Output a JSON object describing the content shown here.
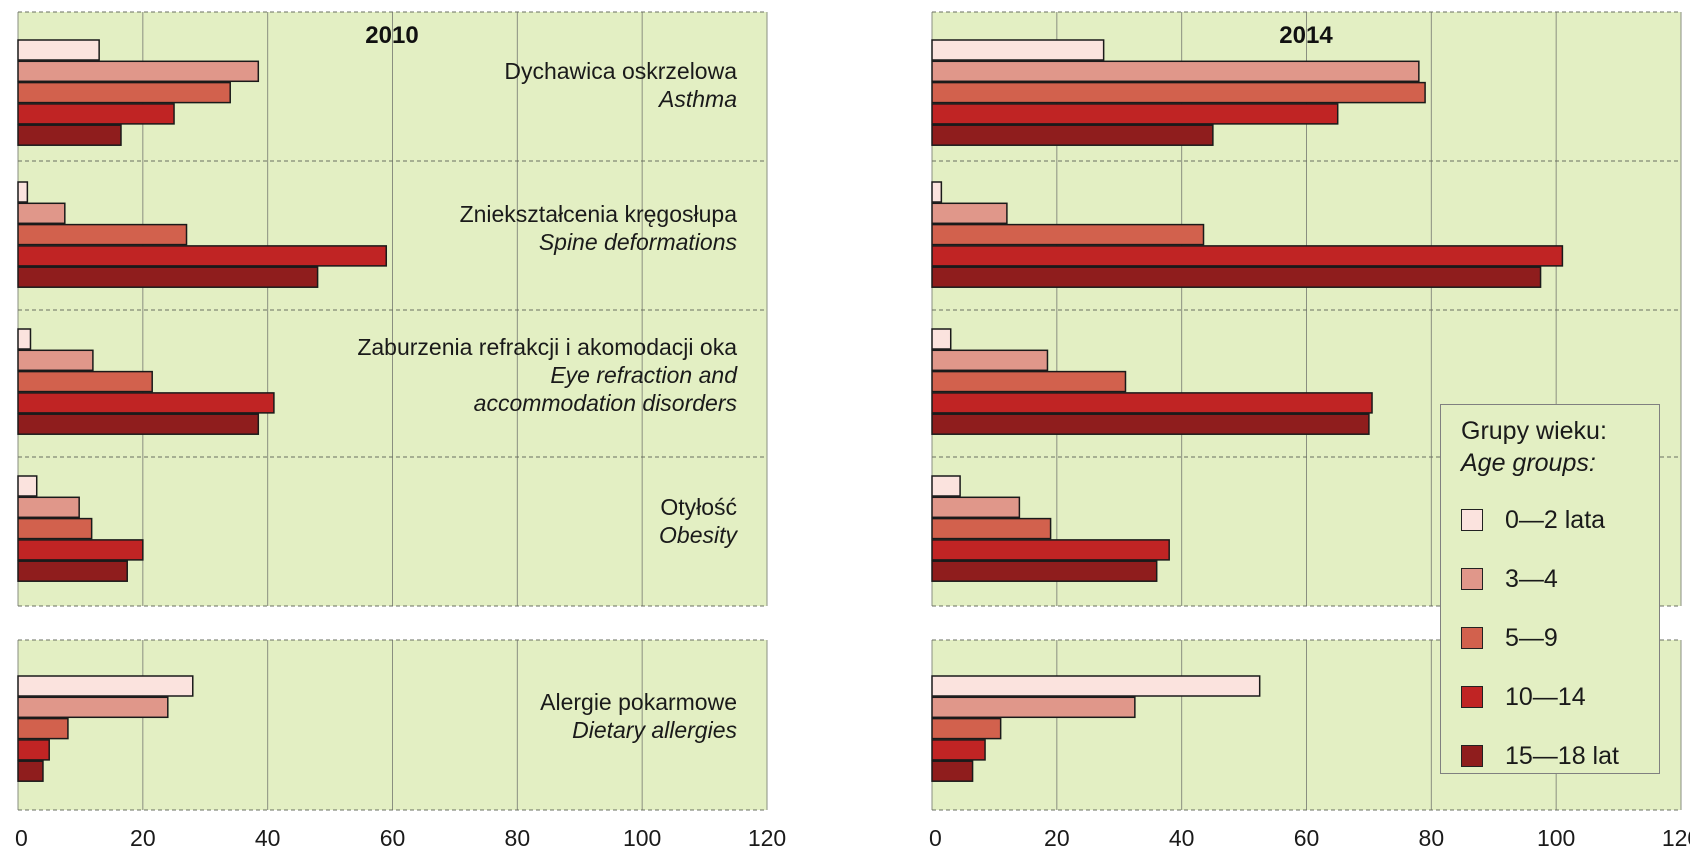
{
  "colors": {
    "background": "#e3efc3",
    "grid": "#8a8f80",
    "age_groups": [
      "#fbe3de",
      "#e0978a",
      "#d2614d",
      "#c02424",
      "#8f1d1d"
    ]
  },
  "legend": {
    "title": "Grupy wieku:",
    "subtitle": "Age groups:",
    "items": [
      "0—2 lata",
      "3—4",
      "5—9",
      "10—14",
      "15—18 lat"
    ]
  },
  "chart_data": [
    {
      "type": "bar",
      "orientation": "horizontal",
      "title": "2010",
      "xlim": [
        0,
        120
      ],
      "xticks": [
        "0",
        "20",
        "40",
        "60",
        "80",
        "100",
        "120"
      ],
      "grid": true,
      "categories": [
        {
          "pl": "Dychawica oskrzelowa",
          "en": [
            "Asthma"
          ]
        },
        {
          "pl": "Zniekształcenia kręgosłupa",
          "en": [
            "Spine deformations"
          ]
        },
        {
          "pl": "Zaburzenia refrakcji i akomodacji oka",
          "en": [
            "Eye refraction and",
            "accommodation disorders"
          ]
        },
        {
          "pl": "Otyłość",
          "en": [
            "Obesity"
          ]
        },
        {
          "pl": "Alergie pokarmowe",
          "en": [
            "Dietary allergies"
          ]
        }
      ],
      "series": [
        {
          "name": "0—2 lata",
          "values": [
            13,
            1.5,
            2,
            3,
            28
          ]
        },
        {
          "name": "3—4",
          "values": [
            38.5,
            7.5,
            12,
            9.8,
            24
          ]
        },
        {
          "name": "5—9",
          "values": [
            34,
            27,
            21.5,
            11.8,
            8
          ]
        },
        {
          "name": "10—14",
          "values": [
            25,
            59,
            41,
            20,
            5
          ]
        },
        {
          "name": "15—18 lat",
          "values": [
            16.5,
            48,
            38.5,
            17.5,
            4
          ]
        }
      ]
    },
    {
      "type": "bar",
      "orientation": "horizontal",
      "title": "2014",
      "xlim": [
        0,
        120
      ],
      "xticks": [
        "0",
        "20",
        "40",
        "60",
        "80",
        "100",
        "120"
      ],
      "grid": true,
      "categories": [
        {
          "pl": "Dychawica oskrzelowa",
          "en": [
            "Asthma"
          ]
        },
        {
          "pl": "Zniekształcenia kręgosłupa",
          "en": [
            "Spine deformations"
          ]
        },
        {
          "pl": "Zaburzenia refrakcji i akomodacji oka",
          "en": [
            "Eye refraction and",
            "accommodation disorders"
          ]
        },
        {
          "pl": "Otyłość",
          "en": [
            "Obesity"
          ]
        },
        {
          "pl": "Alergie pokarmowe",
          "en": [
            "Dietary allergies"
          ]
        }
      ],
      "series": [
        {
          "name": "0—2 lata",
          "values": [
            27.5,
            1.5,
            3,
            4.5,
            52.5
          ]
        },
        {
          "name": "3—4",
          "values": [
            78,
            12,
            18.5,
            14,
            32.5
          ]
        },
        {
          "name": "5—9",
          "values": [
            79,
            43.5,
            31,
            19,
            11
          ]
        },
        {
          "name": "10—14",
          "values": [
            65,
            101,
            70.5,
            38,
            8.5
          ]
        },
        {
          "name": "15—18 lat",
          "values": [
            45,
            97.5,
            70,
            36,
            6.5
          ]
        }
      ]
    }
  ]
}
